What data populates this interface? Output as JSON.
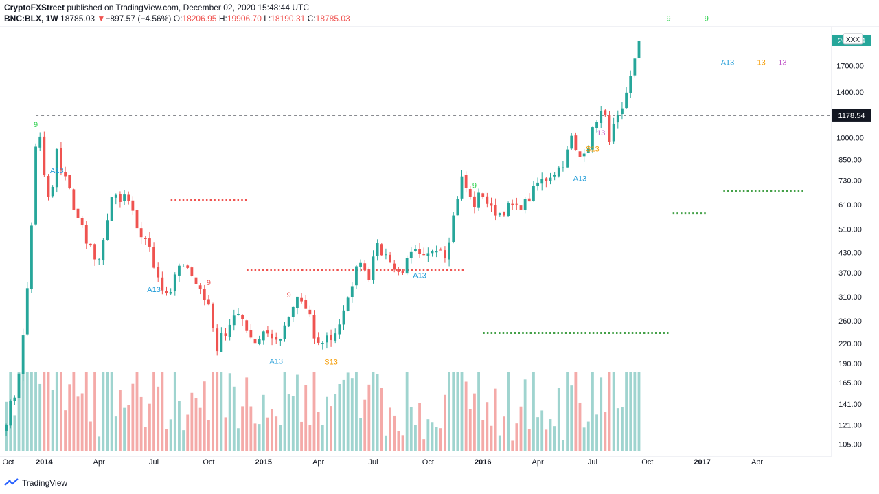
{
  "header": {
    "author": "CryptoFXStreet",
    "published_text": " published on TradingView.com, December 02, 2020 15:48:44 UTC",
    "symbol": "BNC:BLX, 1W",
    "last": "18785.03",
    "change_arrow": "▼",
    "change": "−897.57 (−4.56%)",
    "open_label": "O:",
    "open": "18206.95",
    "high_label": "H:",
    "high": "19906.70",
    "low_label": "L:",
    "low": "18190.31",
    "close_label": "C:",
    "close": "18785.03"
  },
  "footer": {
    "brand": "TradingView"
  },
  "colors": {
    "up": "#26a69a",
    "down": "#ef5350",
    "vol_up": "#9fd4cf",
    "vol_down": "#f4aaa8",
    "td_green": "#2ed14e",
    "td_red": "#ef5350",
    "td_orange": "#f59b00",
    "td_blue": "#1e9bd7",
    "td_purple": "#c258c9",
    "support": "#43a047",
    "resistance": "#ef5350"
  },
  "chart_data": {
    "type": "candlestick",
    "scale": "log",
    "ylim": [
      100,
      2250
    ],
    "y_ticks": [
      "1700.00",
      "1400.00",
      "1000.00",
      "850.00",
      "730.00",
      "610.00",
      "510.00",
      "430.00",
      "370.00",
      "310.00",
      "260.00",
      "220.00",
      "190.00",
      "165.00",
      "141.00",
      "121.00",
      "105.00"
    ],
    "x_ticks": [
      "Oct",
      "2014",
      "Apr",
      "Jul",
      "Oct",
      "2015",
      "Apr",
      "Jul",
      "Oct",
      "2016",
      "Apr",
      "Jul",
      "Oct",
      "2017",
      "Apr"
    ],
    "bold_x_ticks": [
      "2014",
      "2015",
      "2016",
      "2017"
    ],
    "price_labels": [
      {
        "text": "2044.14",
        "value": 2044.14,
        "kind": "last"
      },
      {
        "text": "XXX",
        "kind": "note"
      },
      {
        "text": "1178.54",
        "value": 1178.54,
        "kind": "line"
      }
    ],
    "horizontal_line": {
      "value": 1178.54,
      "style": "dashed"
    },
    "levels": [
      {
        "kind": "resistance",
        "value": 632,
        "from_week": 39,
        "to_week": 57
      },
      {
        "kind": "resistance",
        "value": 378,
        "from_week": 57,
        "to_week": 109
      },
      {
        "kind": "support",
        "value": 238,
        "from_week": 113,
        "to_week": 157
      },
      {
        "kind": "support",
        "value": 573,
        "from_week": 158,
        "to_week": 166
      },
      {
        "kind": "support",
        "value": 675,
        "from_week": 170,
        "to_week": 189
      }
    ],
    "td_labels": [
      {
        "text": "9",
        "week": 7,
        "pos": "above",
        "color": "green"
      },
      {
        "text": "A13",
        "week": 12,
        "pos": "below",
        "color": "blue"
      },
      {
        "text": "A13",
        "week": 35,
        "pos": "below",
        "color": "blue"
      },
      {
        "text": "9",
        "week": 48,
        "pos": "above",
        "color": "red"
      },
      {
        "text": "9",
        "week": 67,
        "pos": "above",
        "color": "red"
      },
      {
        "text": "A13",
        "week": 64,
        "pos": "below",
        "color": "blue"
      },
      {
        "text": "S13",
        "week": 77,
        "pos": "below",
        "color": "orange"
      },
      {
        "text": "A13",
        "week": 98,
        "pos": "below",
        "color": "blue"
      },
      {
        "text": "9",
        "week": 111,
        "pos": "above",
        "color": "green"
      },
      {
        "text": "A13",
        "week": 136,
        "pos": "below",
        "color": "blue"
      },
      {
        "text": "S13",
        "week": 139,
        "pos": "below",
        "color": "orange"
      },
      {
        "text": "13",
        "week": 141,
        "pos": "below",
        "color": "purple"
      },
      {
        "text": "9",
        "week": 157,
        "pos": "above",
        "color": "green"
      },
      {
        "text": "9",
        "week": 166,
        "pos": "above",
        "color": "green"
      },
      {
        "text": "A13",
        "week": 171,
        "pos": "below",
        "color": "blue"
      },
      {
        "text": "13",
        "week": 179,
        "pos": "below",
        "color": "orange"
      },
      {
        "text": "13",
        "week": 184,
        "pos": "below",
        "color": "purple"
      }
    ],
    "anchors": [
      [
        0,
        125
      ],
      [
        1,
        140
      ],
      [
        2,
        150
      ],
      [
        3,
        180
      ],
      [
        4,
        230
      ],
      [
        5,
        330
      ],
      [
        6,
        530
      ],
      [
        7,
        920
      ],
      [
        8,
        990
      ],
      [
        9,
        760
      ],
      [
        10,
        640
      ],
      [
        11,
        690
      ],
      [
        12,
        900
      ],
      [
        13,
        800
      ],
      [
        14,
        760
      ],
      [
        15,
        680
      ],
      [
        16,
        580
      ],
      [
        17,
        570
      ],
      [
        18,
        520
      ],
      [
        19,
        460
      ],
      [
        20,
        440
      ],
      [
        21,
        400
      ],
      [
        22,
        420
      ],
      [
        23,
        470
      ],
      [
        24,
        530
      ],
      [
        25,
        640
      ],
      [
        26,
        650
      ],
      [
        27,
        620
      ],
      [
        28,
        640
      ],
      [
        29,
        610
      ],
      [
        30,
        590
      ],
      [
        31,
        520
      ],
      [
        32,
        470
      ],
      [
        33,
        480
      ],
      [
        34,
        460
      ],
      [
        35,
        390
      ],
      [
        36,
        360
      ],
      [
        37,
        330
      ],
      [
        38,
        310
      ],
      [
        39,
        320
      ],
      [
        40,
        360
      ],
      [
        41,
        380
      ],
      [
        42,
        400
      ],
      [
        43,
        390
      ],
      [
        44,
        360
      ],
      [
        45,
        340
      ],
      [
        46,
        330
      ],
      [
        47,
        310
      ],
      [
        48,
        285
      ],
      [
        49,
        255
      ],
      [
        50,
        210
      ],
      [
        51,
        240
      ],
      [
        52,
        230
      ],
      [
        53,
        245
      ],
      [
        54,
        270
      ],
      [
        55,
        280
      ],
      [
        56,
        265
      ],
      [
        57,
        245
      ],
      [
        58,
        232
      ],
      [
        59,
        222
      ],
      [
        60,
        230
      ],
      [
        61,
        240
      ],
      [
        62,
        235
      ],
      [
        63,
        233
      ],
      [
        64,
        220
      ],
      [
        65,
        228
      ],
      [
        66,
        245
      ],
      [
        67,
        265
      ],
      [
        68,
        285
      ],
      [
        69,
        310
      ],
      [
        70,
        300
      ],
      [
        71,
        280
      ],
      [
        72,
        265
      ],
      [
        73,
        230
      ],
      [
        74,
        218
      ],
      [
        75,
        225
      ],
      [
        76,
        232
      ],
      [
        77,
        228
      ],
      [
        78,
        240
      ],
      [
        79,
        255
      ],
      [
        80,
        275
      ],
      [
        81,
        300
      ],
      [
        82,
        345
      ],
      [
        83,
        380
      ],
      [
        84,
        410
      ],
      [
        85,
        380
      ],
      [
        86,
        360
      ],
      [
        87,
        430
      ],
      [
        88,
        445
      ],
      [
        89,
        430
      ],
      [
        90,
        420
      ],
      [
        91,
        410
      ],
      [
        92,
        380
      ],
      [
        93,
        370
      ],
      [
        94,
        380
      ],
      [
        95,
        400
      ],
      [
        96,
        420
      ],
      [
        97,
        428
      ],
      [
        98,
        415
      ],
      [
        99,
        410
      ],
      [
        100,
        420
      ],
      [
        101,
        440
      ],
      [
        102,
        450
      ],
      [
        103,
        445
      ],
      [
        104,
        425
      ],
      [
        105,
        480
      ],
      [
        106,
        560
      ],
      [
        107,
        650
      ],
      [
        108,
        740
      ],
      [
        109,
        690
      ],
      [
        110,
        640
      ],
      [
        111,
        610
      ],
      [
        112,
        650
      ],
      [
        113,
        660
      ],
      [
        114,
        620
      ],
      [
        115,
        590
      ],
      [
        116,
        580
      ],
      [
        117,
        575
      ],
      [
        118,
        585
      ],
      [
        119,
        600
      ],
      [
        120,
        605
      ],
      [
        121,
        595
      ],
      [
        122,
        610
      ],
      [
        123,
        620
      ],
      [
        124,
        640
      ],
      [
        125,
        680
      ],
      [
        126,
        715
      ],
      [
        127,
        730
      ],
      [
        128,
        740
      ],
      [
        129,
        760
      ],
      [
        130,
        775
      ],
      [
        131,
        800
      ],
      [
        132,
        830
      ],
      [
        133,
        900
      ],
      [
        134,
        1000
      ],
      [
        135,
        900
      ],
      [
        136,
        870
      ],
      [
        137,
        920
      ],
      [
        138,
        950
      ],
      [
        139,
        1050
      ],
      [
        140,
        1150
      ],
      [
        141,
        1200
      ],
      [
        142,
        1150
      ],
      [
        143,
        1000
      ],
      [
        144,
        1080
      ],
      [
        145,
        1150
      ],
      [
        146,
        1200
      ],
      [
        147,
        1350
      ],
      [
        148,
        1550
      ],
      [
        149,
        1800
      ],
      [
        150,
        2044.14
      ]
    ]
  }
}
